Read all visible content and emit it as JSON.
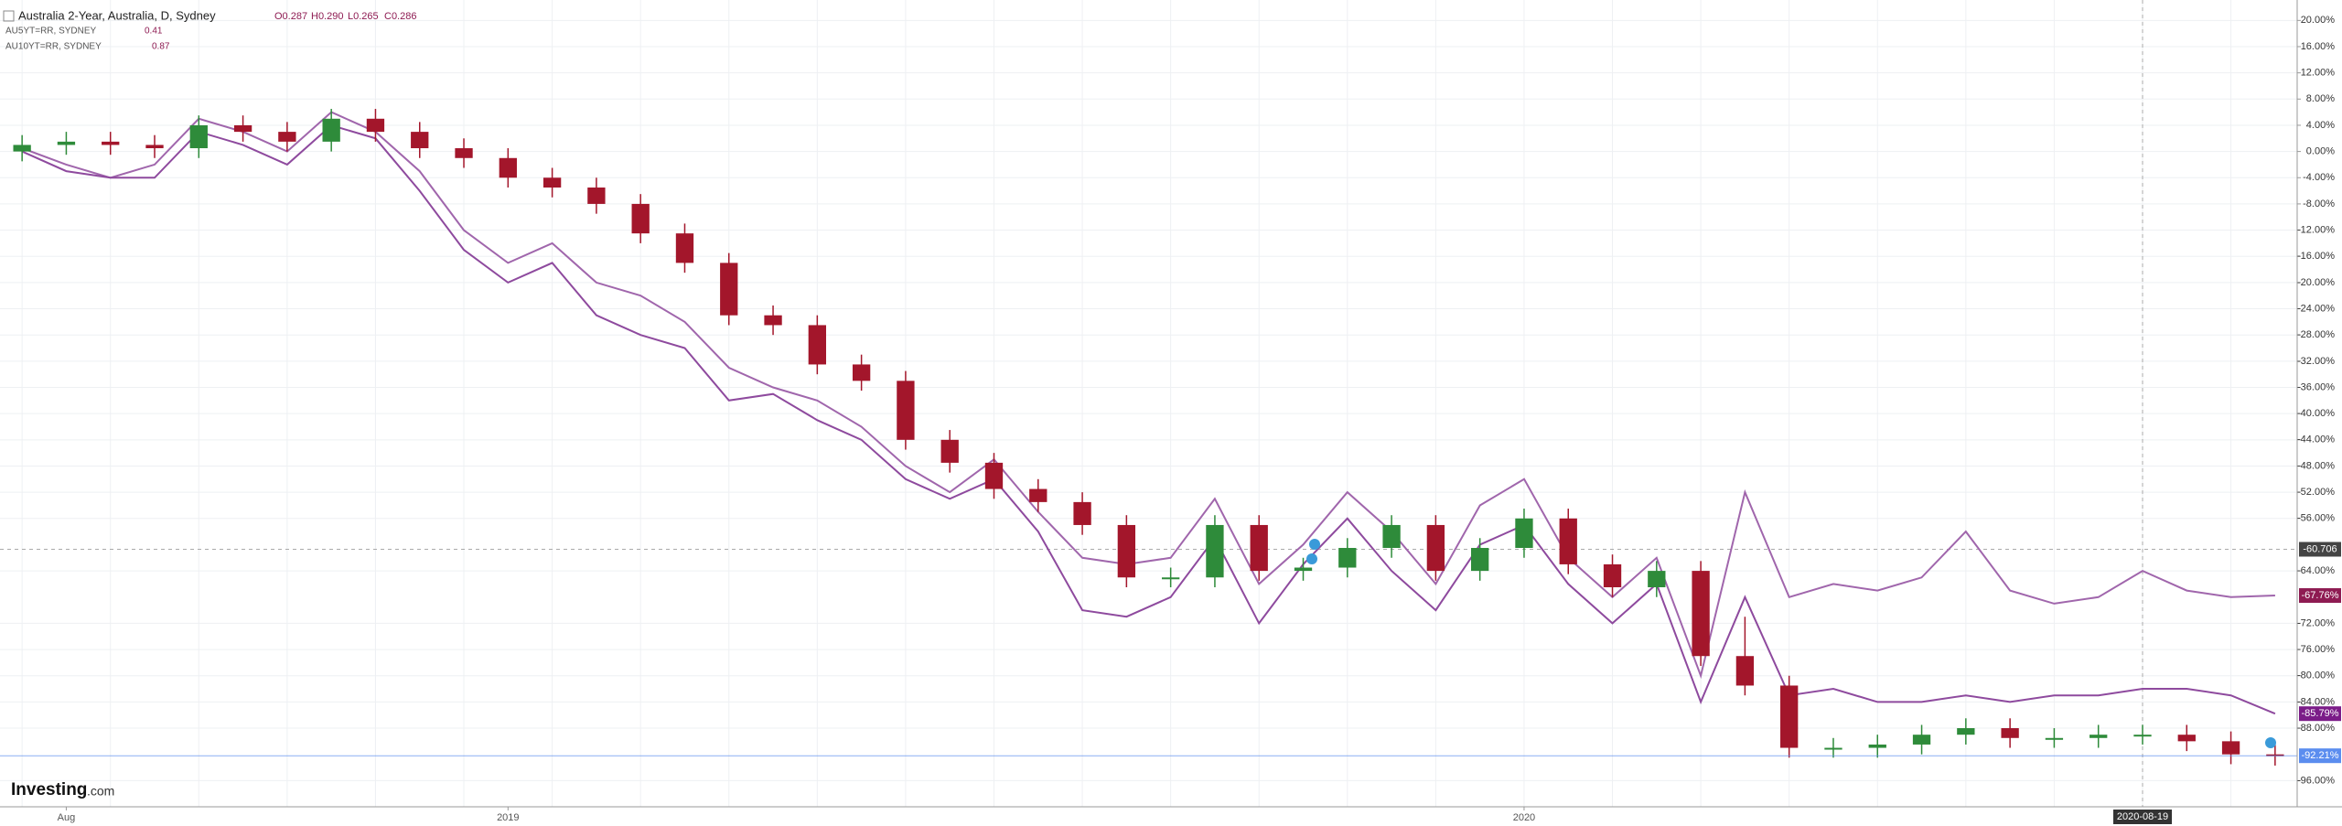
{
  "chart_data": {
    "type": "candlestick",
    "categories": [
      null,
      "Aug",
      null,
      null,
      null,
      null,
      null,
      null,
      null,
      null,
      null,
      "2019",
      null,
      null,
      null,
      null,
      null,
      null,
      null,
      null,
      null,
      null,
      null,
      null,
      null,
      null,
      null,
      null,
      null,
      null,
      null,
      null,
      null,
      null,
      "2020",
      null,
      null,
      null,
      null,
      null,
      null,
      null,
      null,
      null,
      null,
      null,
      null,
      null,
      "2020-08-19",
      null,
      null,
      null
    ],
    "ylim": [
      -100,
      22
    ],
    "yticks": [
      {
        "value": 20,
        "label": "20.00%"
      },
      {
        "value": 16,
        "label": "16.00%"
      },
      {
        "value": 12,
        "label": "12.00%"
      },
      {
        "value": 8,
        "label": "8.00%"
      },
      {
        "value": 4,
        "label": "4.00%"
      },
      {
        "value": 0,
        "label": "0.00%"
      },
      {
        "value": -4,
        "label": "-4.00%"
      },
      {
        "value": -8,
        "label": "-8.00%"
      },
      {
        "value": -12,
        "label": "-12.00%"
      },
      {
        "value": -16,
        "label": "-16.00%"
      },
      {
        "value": -20,
        "label": "-20.00%"
      },
      {
        "value": -24,
        "label": "-24.00%"
      },
      {
        "value": -28,
        "label": "-28.00%"
      },
      {
        "value": -32,
        "label": "-32.00%"
      },
      {
        "value": -36,
        "label": "-36.00%"
      },
      {
        "value": -40,
        "label": "-40.00%"
      },
      {
        "value": -44,
        "label": "-44.00%"
      },
      {
        "value": -48,
        "label": "-48.00%"
      },
      {
        "value": -52,
        "label": "-52.00%"
      },
      {
        "value": -56,
        "label": "-56.00%"
      },
      {
        "value": -64,
        "label": "-64.00%"
      },
      {
        "value": -72,
        "label": "-72.00%"
      },
      {
        "value": -76,
        "label": "-76.00%"
      },
      {
        "value": -80,
        "label": "-80.00%"
      },
      {
        "value": -84,
        "label": "-84.00%"
      },
      {
        "value": -88,
        "label": "-88.00%"
      },
      {
        "value": -96,
        "label": "-96.00%"
      }
    ],
    "grid": true,
    "crosshair": {
      "value": -60.706,
      "label": "-60.706"
    },
    "logo": {
      "name": "Investing",
      "suffix": ".com"
    },
    "series": [
      {
        "name": "Australia 2-Year, Australia, D, Sydney",
        "type": "candlestick",
        "ohlc_labels": [
          "O0.287",
          "H0.290",
          "L0.265",
          "C0.286"
        ],
        "up_color": "#2e8b3a",
        "down_color": "#a3162b",
        "badge_color": "#5b8def",
        "last_label": "-92.21%",
        "open": [
          0,
          1,
          1.5,
          1,
          0.5,
          4,
          3,
          1.5,
          5,
          3,
          0.5,
          -1,
          -4,
          -5.5,
          -8,
          -12.5,
          -17,
          -25,
          -26.5,
          -32.5,
          -35,
          -44,
          -47.5,
          -51.5,
          -53.5,
          -57,
          -65,
          -65,
          -57,
          -64,
          -63.5,
          -60.5,
          -57,
          -64,
          -60.5,
          -56,
          -63,
          -66.5,
          -64,
          -77,
          -81.5,
          -91,
          -91,
          -90.5,
          -89,
          -88,
          -89.5,
          -89.5,
          -89,
          -89,
          -90,
          -92
        ],
        "high": [
          2.5,
          3,
          3,
          2.5,
          5.5,
          5.5,
          4.5,
          6.5,
          6.5,
          4.5,
          2,
          0.5,
          -2.5,
          -4,
          -6.5,
          -11,
          -15.5,
          -23.5,
          -25,
          -31,
          -33.5,
          -42.5,
          -46,
          -50,
          -52,
          -55.5,
          -63.5,
          -55.5,
          -55.5,
          -62,
          -59,
          -55.5,
          -55.5,
          -59,
          -54.5,
          -54.5,
          -61.5,
          -62.5,
          -62.5,
          -71,
          -80,
          -89.5,
          -89,
          -87.5,
          -86.5,
          -86.5,
          -88,
          -87.5,
          -87.5,
          -87.5,
          -88.5,
          -90.5
        ],
        "low": [
          -1.5,
          -0.5,
          -0.5,
          -1,
          -1,
          1.5,
          0,
          0,
          1.5,
          -1,
          -2.5,
          -5.5,
          -7,
          -9.5,
          -14,
          -18.5,
          -26.5,
          -28,
          -34,
          -36.5,
          -45.5,
          -49,
          -53,
          -55,
          -58.5,
          -66.5,
          -66.5,
          -66.5,
          -65.5,
          -65.5,
          -65,
          -62,
          -65.5,
          -65.5,
          -62,
          -64.5,
          -68,
          -68,
          -78.5,
          -83,
          -92.5,
          -92.5,
          -92.5,
          -92,
          -90.5,
          -91,
          -91,
          -91,
          -90.5,
          -91.5,
          -93.5,
          -93.71
        ],
        "close": [
          1,
          1.5,
          1,
          0.5,
          4,
          3,
          1.5,
          5,
          3,
          0.5,
          -1,
          -4,
          -5.5,
          -8,
          -12.5,
          -17,
          -25,
          -26.5,
          -32.5,
          -35,
          -44,
          -47.5,
          -51.5,
          -53.5,
          -57,
          -65,
          -65,
          -57,
          -64,
          -63.5,
          -60.5,
          -57,
          -64,
          -60.5,
          -56,
          -63,
          -66.5,
          -64,
          -77,
          -81.5,
          -91,
          -91,
          -90.5,
          -89,
          -88,
          -89.5,
          -89.5,
          -89,
          -89,
          -90,
          -92,
          -92.21
        ]
      },
      {
        "name": "AU5YT=RR, SYDNEY",
        "type": "line",
        "color": "#8e4a9e",
        "legend_value": "0.41",
        "badge_color": "#7b1c88",
        "last_label": "-85.79%",
        "values": [
          0,
          -3,
          -4,
          -4,
          3,
          1,
          -2,
          4,
          2,
          -6,
          -15,
          -20,
          -17,
          -25,
          -28,
          -30,
          -38,
          -37,
          -41,
          -44,
          -50,
          -53,
          -50,
          -58,
          -70,
          -71,
          -68,
          -59,
          -72,
          -63,
          -56,
          -64,
          -70,
          -60,
          -57,
          -66,
          -72,
          -66,
          -84,
          -68,
          -83,
          -82,
          -84,
          -84,
          -83,
          -84,
          -83,
          -83,
          -82,
          -82,
          -83,
          -85.79
        ]
      },
      {
        "name": "AU10YT=RR, SYDNEY",
        "type": "line",
        "color": "#a066ac",
        "legend_value": "0.87",
        "badge_color": "#8e1b52",
        "last_label": "-67.76%",
        "values": [
          0.5,
          -2,
          -4,
          -2,
          5,
          3,
          0,
          6,
          3,
          -3,
          -12,
          -17,
          -14,
          -20,
          -22,
          -26,
          -33,
          -36,
          -38,
          -42,
          -48,
          -52,
          -47,
          -55,
          -62,
          -63,
          -62,
          -53,
          -66,
          -60,
          -52,
          -58,
          -66,
          -54,
          -50,
          -62,
          -68,
          -62,
          -80,
          -52,
          -68,
          -66,
          -67,
          -65,
          -58,
          -67,
          -69,
          -68,
          -64,
          -67,
          -68,
          -67.76
        ]
      }
    ]
  }
}
